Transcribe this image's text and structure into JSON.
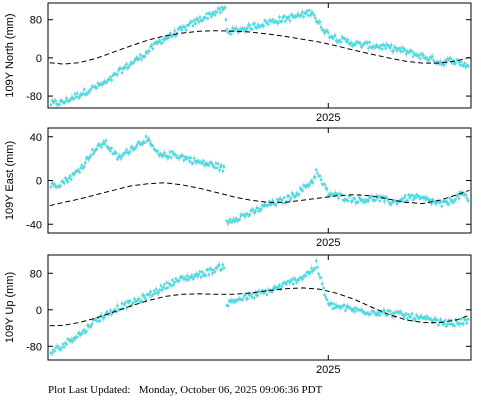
{
  "footer": {
    "label": "Plot Last Updated:",
    "timestamp": "Monday, October 06, 2025 09:06:36 PDT"
  },
  "colors": {
    "points": "#40e0e8",
    "errorbars": "#b8b8b8",
    "model": "#000000",
    "frame": "#000000"
  },
  "chart_data": [
    {
      "type": "scatter",
      "station": "109Y",
      "ylabel": "109Y North (mm)",
      "ylim": [
        -105,
        115
      ],
      "yticks": [
        -80,
        0,
        80
      ],
      "x_tick": {
        "label": "2025",
        "position": 2025.0
      },
      "xlim": [
        2023.37,
        2025.83
      ],
      "grid": false,
      "series": [
        {
          "role": "observations",
          "x": [
            2023.38,
            2023.45,
            2023.52,
            2023.58,
            2023.62,
            2023.72,
            2023.78,
            2023.86,
            2023.94,
            2024.02,
            2024.1,
            2024.18,
            2024.26,
            2024.34,
            2024.4,
            2024.41,
            2024.45,
            2024.55,
            2024.65,
            2024.75,
            2024.85,
            2024.91,
            2024.93,
            2025.0,
            2025.08,
            2025.18,
            2025.28,
            2025.38,
            2025.48,
            2025.58,
            2025.66,
            2025.72,
            2025.78,
            2025.82
          ],
          "y": [
            -96,
            -94,
            -82,
            -72,
            -65,
            -50,
            -30,
            -10,
            10,
            35,
            50,
            65,
            82,
            95,
            103,
            57,
            56,
            65,
            75,
            82,
            90,
            98,
            78,
            50,
            37,
            28,
            25,
            20,
            10,
            0,
            -10,
            -5,
            -12,
            -18
          ]
        },
        {
          "role": "model",
          "style": "dashed",
          "x": [
            2023.38,
            2023.46,
            2023.55,
            2023.65,
            2023.75,
            2023.85,
            2023.95,
            2024.05,
            2024.15,
            2024.25,
            2024.35,
            2024.45,
            2024.55,
            2024.65,
            2024.75,
            2024.85,
            2024.95,
            2025.05,
            2025.15,
            2025.25,
            2025.35,
            2025.45,
            2025.55,
            2025.65,
            2025.75,
            2025.82
          ],
          "y": [
            -10,
            -13,
            -10,
            -1,
            12,
            25,
            37,
            46,
            52,
            56,
            57,
            56,
            54,
            50,
            45,
            39,
            33,
            25,
            16,
            8,
            0,
            -7,
            -11,
            -11,
            -6,
            1
          ]
        }
      ]
    },
    {
      "type": "scatter",
      "station": "109Y",
      "ylabel": "109Y East (mm)",
      "ylim": [
        -48,
        48
      ],
      "yticks": [
        -40,
        0,
        40
      ],
      "x_tick": {
        "label": "2025",
        "position": 2025.0
      },
      "xlim": [
        2023.37,
        2025.83
      ],
      "grid": false,
      "series": [
        {
          "role": "observations",
          "x": [
            2023.38,
            2023.45,
            2023.52,
            2023.58,
            2023.62,
            2023.7,
            2023.78,
            2023.86,
            2023.94,
            2024.02,
            2024.1,
            2024.18,
            2024.26,
            2024.34,
            2024.4,
            2024.41,
            2024.45,
            2024.55,
            2024.65,
            2024.75,
            2024.85,
            2024.91,
            2024.93,
            2025.0,
            2025.08,
            2025.18,
            2025.28,
            2025.38,
            2025.48,
            2025.58,
            2025.66,
            2025.72,
            2025.78,
            2025.82
          ],
          "y": [
            -5,
            -2,
            5,
            15,
            25,
            35,
            20,
            30,
            38,
            22,
            24,
            20,
            16,
            14,
            10,
            -38,
            -35,
            -30,
            -22,
            -18,
            -8,
            0,
            8,
            -12,
            -15,
            -18,
            -16,
            -20,
            -15,
            -18,
            -22,
            -18,
            -12,
            -20
          ]
        },
        {
          "role": "model",
          "style": "dashed",
          "x": [
            2023.38,
            2023.46,
            2023.55,
            2023.65,
            2023.75,
            2023.85,
            2023.95,
            2024.05,
            2024.15,
            2024.25,
            2024.35,
            2024.45,
            2024.55,
            2024.65,
            2024.75,
            2024.85,
            2024.95,
            2025.05,
            2025.15,
            2025.25,
            2025.35,
            2025.45,
            2025.55,
            2025.65,
            2025.75,
            2025.82
          ],
          "y": [
            -23,
            -20,
            -17,
            -13,
            -9,
            -5,
            -3,
            -2,
            -4,
            -7,
            -11,
            -15,
            -18,
            -20,
            -20,
            -18,
            -16,
            -14,
            -13,
            -14,
            -17,
            -20,
            -21,
            -18,
            -13,
            -9
          ]
        }
      ]
    },
    {
      "type": "scatter",
      "station": "109Y",
      "ylabel": "109Y Up (mm)",
      "ylim": [
        -110,
        120
      ],
      "yticks": [
        -80,
        0,
        80
      ],
      "x_tick": {
        "label": "2025",
        "position": 2025.0
      },
      "xlim": [
        2023.37,
        2025.83
      ],
      "grid": false,
      "series": [
        {
          "role": "observations",
          "x": [
            2023.38,
            2023.45,
            2023.52,
            2023.58,
            2023.62,
            2023.7,
            2023.78,
            2023.86,
            2023.94,
            2024.02,
            2024.1,
            2024.18,
            2024.26,
            2024.34,
            2024.4,
            2024.41,
            2024.45,
            2024.55,
            2024.65,
            2024.75,
            2024.85,
            2024.91,
            2024.93,
            2025.0,
            2025.08,
            2025.18,
            2025.28,
            2025.38,
            2025.48,
            2025.58,
            2025.66,
            2025.72,
            2025.78,
            2025.82
          ],
          "y": [
            -95,
            -80,
            -60,
            -48,
            -30,
            -12,
            5,
            15,
            28,
            45,
            62,
            70,
            78,
            88,
            98,
            12,
            20,
            30,
            40,
            55,
            72,
            88,
            100,
            10,
            5,
            -2,
            -5,
            -8,
            -15,
            -22,
            -28,
            -30,
            -25,
            -28
          ]
        },
        {
          "role": "model",
          "style": "dashed",
          "x": [
            2023.38,
            2023.46,
            2023.55,
            2023.65,
            2023.75,
            2023.85,
            2023.95,
            2024.05,
            2024.15,
            2024.25,
            2024.35,
            2024.45,
            2024.55,
            2024.65,
            2024.75,
            2024.85,
            2024.95,
            2025.05,
            2025.15,
            2025.25,
            2025.35,
            2025.45,
            2025.55,
            2025.65,
            2025.75,
            2025.82
          ],
          "y": [
            -35,
            -34,
            -28,
            -18,
            -5,
            8,
            20,
            29,
            34,
            35,
            34,
            34,
            37,
            42,
            46,
            48,
            45,
            36,
            23,
            6,
            -10,
            -22,
            -28,
            -28,
            -22,
            -12
          ]
        }
      ]
    }
  ]
}
